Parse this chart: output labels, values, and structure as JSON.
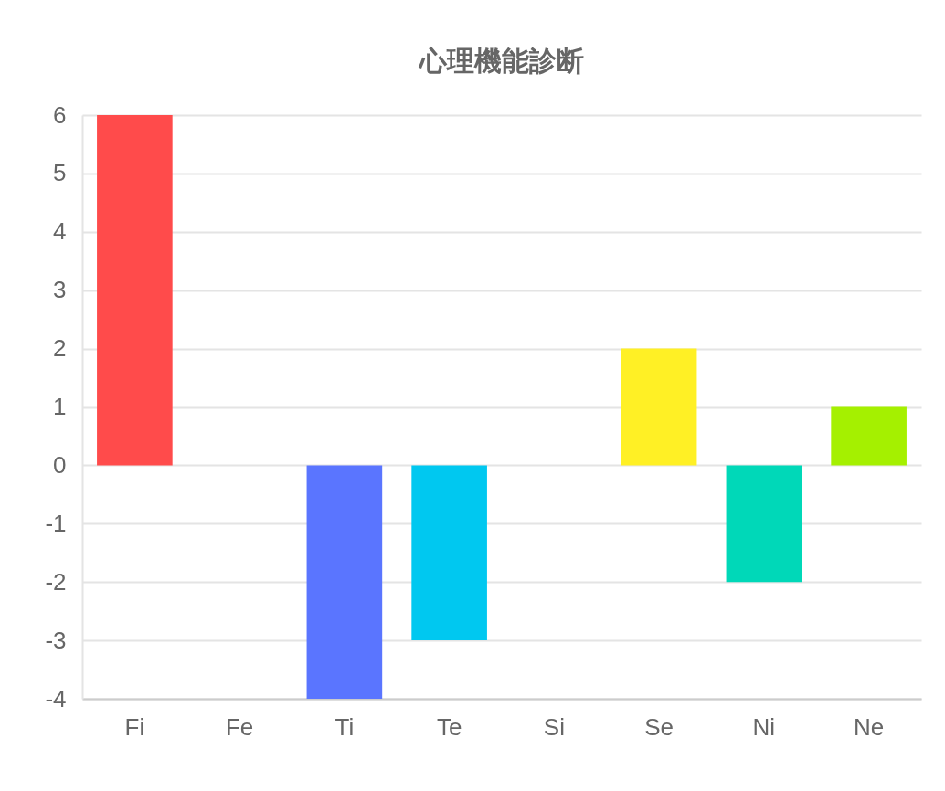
{
  "chart_data": {
    "type": "bar",
    "title": "心理機能診断",
    "categories": [
      "Fi",
      "Fe",
      "Ti",
      "Te",
      "Si",
      "Se",
      "Ni",
      "Ne"
    ],
    "values": [
      6,
      0,
      -4,
      -3,
      0,
      2,
      -2,
      1
    ],
    "colors": [
      "#ff4b4b",
      "#ff4b4b",
      "#5a75ff",
      "#00c8f0",
      "#fff025",
      "#fff025",
      "#00d8b8",
      "#a5f000"
    ],
    "ylim": [
      -4,
      6
    ],
    "yticks": [
      -4,
      -3,
      -2,
      -1,
      0,
      1,
      2,
      3,
      4,
      5,
      6
    ],
    "grid": "y",
    "legend": false
  }
}
